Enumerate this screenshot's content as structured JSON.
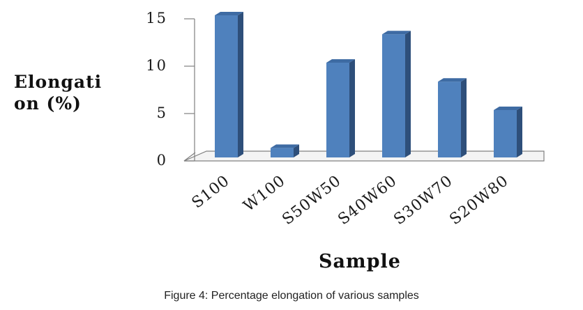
{
  "caption": "Figure 4: Percentage elongation of various samples",
  "chart_data": {
    "type": "bar",
    "style": "3d-column",
    "categories": [
      "S100",
      "W100",
      "S50W50",
      "S40W60",
      "S30W70",
      "S20W80"
    ],
    "series": [
      {
        "values": [
          15,
          1,
          10,
          13,
          8,
          5
        ]
      }
    ],
    "xlabel": "Sample",
    "ylabel_lines": [
      "Elongati",
      "on (%)"
    ],
    "ylim": [
      0,
      15
    ],
    "yticks": [
      0,
      5,
      10,
      15
    ],
    "grid": false,
    "legend": "none",
    "colors": {
      "bar_front": "#4F81BD",
      "bar_side": "#2E4F7A",
      "bar_top": "#3E6BA3",
      "axis": "#808080"
    }
  }
}
